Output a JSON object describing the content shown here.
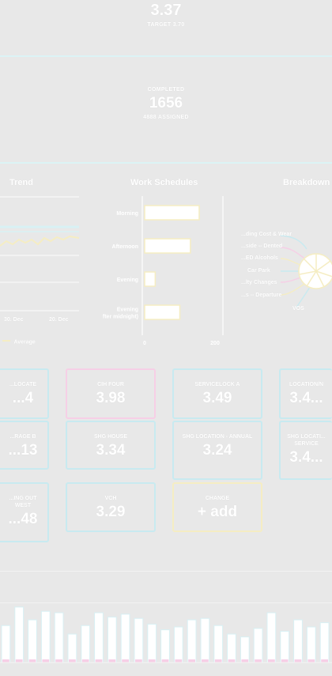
{
  "hero": {
    "score": "3.37",
    "target": "TARGET 3.70",
    "completed_label": "COMPLETED",
    "completed_value": "1656",
    "assigned": "4888 ASSIGNED"
  },
  "trend": {
    "title": "Trend",
    "x_labels": [
      "30. Dec",
      "20. Dec"
    ],
    "legend_label": "Average"
  },
  "work_schedules": {
    "title": "Work Schedules",
    "chart_data": {
      "type": "bar",
      "categories": [
        "Morning",
        "Afternoon",
        "Evening",
        "Evening (after midnight)"
      ],
      "values": [
        155,
        130,
        30,
        100
      ],
      "xlim": [
        0,
        200
      ],
      "tick_labels": [
        "0",
        "200"
      ]
    }
  },
  "breakdown": {
    "title": "Breakdown",
    "labels": [
      "...ding Cost & Wear",
      "...side -- Dented",
      "...ED Alcohols",
      "Car Park",
      "...lty Changes",
      "...s -- Departure",
      "VOS"
    ]
  },
  "tiles": [
    {
      "label": "...LOCATE",
      "value": "...4",
      "color": "#c8eaf0"
    },
    {
      "label": "CIH FOUR",
      "value": "3.98",
      "color": "#f6cfe6"
    },
    {
      "label": "SERVICELOCK A",
      "value": "3.49",
      "color": "#c8eaf0"
    },
    {
      "label": "LOCATION/N",
      "value": "3.4...",
      "color": "#c8eaf0"
    },
    {
      "label": "...RAGE B",
      "value": "...13",
      "color": "#c8eaf0"
    },
    {
      "label": "SHG HOUSE",
      "value": "3.34",
      "color": "#c8eaf0"
    },
    {
      "label": "SHG LOCATION - ANNUAL",
      "value": "3.24",
      "color": "#c8eaf0"
    },
    {
      "label": "SHG LOCATI... SERVICE",
      "value": "3.4...",
      "color": "#c8eaf0"
    },
    {
      "label": "...ING OUT WEST",
      "value": "...48",
      "color": "#c8eaf0"
    },
    {
      "label": "VCH",
      "value": "3.29",
      "color": "#c8eaf0"
    },
    {
      "label": "CHANGE",
      "value": "+ add",
      "color": "#f5edc3"
    }
  ],
  "colors": {
    "background": "#e8e8e8",
    "accent_teal": "#c8eaf0",
    "accent_pink": "#f6cfe6",
    "accent_yellow": "#f5edc3"
  },
  "bottom_bars": {
    "chart_data": {
      "type": "bar",
      "values": [
        52,
        78,
        60,
        72,
        70,
        40,
        52,
        70,
        64,
        68,
        62,
        54,
        46,
        50,
        60,
        62,
        52,
        40,
        36,
        48,
        70,
        44,
        60,
        50,
        56
      ]
    }
  }
}
